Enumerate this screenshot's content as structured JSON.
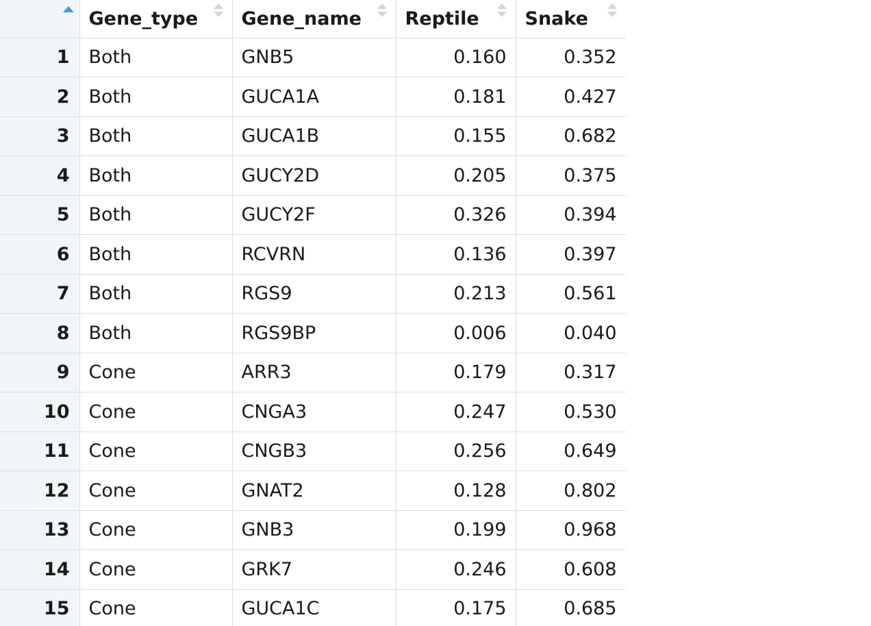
{
  "table": {
    "columns": [
      {
        "key": "index",
        "label": ""
      },
      {
        "key": "gene_type",
        "label": "Gene_type"
      },
      {
        "key": "gene_name",
        "label": "Gene_name"
      },
      {
        "key": "reptile",
        "label": "Reptile"
      },
      {
        "key": "snake",
        "label": "Snake"
      }
    ],
    "sort": {
      "column": "index",
      "direction": "ascending",
      "indicator_color": "#4d94e0"
    },
    "rows": [
      {
        "index": "1",
        "gene_type": "Both",
        "gene_name": "GNB5",
        "reptile": "0.160",
        "snake": "0.352"
      },
      {
        "index": "2",
        "gene_type": "Both",
        "gene_name": "GUCA1A",
        "reptile": "0.181",
        "snake": "0.427"
      },
      {
        "index": "3",
        "gene_type": "Both",
        "gene_name": "GUCA1B",
        "reptile": "0.155",
        "snake": "0.682"
      },
      {
        "index": "4",
        "gene_type": "Both",
        "gene_name": "GUCY2D",
        "reptile": "0.205",
        "snake": "0.375"
      },
      {
        "index": "5",
        "gene_type": "Both",
        "gene_name": "GUCY2F",
        "reptile": "0.326",
        "snake": "0.394"
      },
      {
        "index": "6",
        "gene_type": "Both",
        "gene_name": "RCVRN",
        "reptile": "0.136",
        "snake": "0.397"
      },
      {
        "index": "7",
        "gene_type": "Both",
        "gene_name": "RGS9",
        "reptile": "0.213",
        "snake": "0.561"
      },
      {
        "index": "8",
        "gene_type": "Both",
        "gene_name": "RGS9BP",
        "reptile": "0.006",
        "snake": "0.040"
      },
      {
        "index": "9",
        "gene_type": "Cone",
        "gene_name": "ARR3",
        "reptile": "0.179",
        "snake": "0.317"
      },
      {
        "index": "10",
        "gene_type": "Cone",
        "gene_name": "CNGA3",
        "reptile": "0.247",
        "snake": "0.530"
      },
      {
        "index": "11",
        "gene_type": "Cone",
        "gene_name": "CNGB3",
        "reptile": "0.256",
        "snake": "0.649"
      },
      {
        "index": "12",
        "gene_type": "Cone",
        "gene_name": "GNAT2",
        "reptile": "0.128",
        "snake": "0.802"
      },
      {
        "index": "13",
        "gene_type": "Cone",
        "gene_name": "GNB3",
        "reptile": "0.199",
        "snake": "0.968"
      },
      {
        "index": "14",
        "gene_type": "Cone",
        "gene_name": "GRK7",
        "reptile": "0.246",
        "snake": "0.608"
      },
      {
        "index": "15",
        "gene_type": "Cone",
        "gene_name": "GUCA1C",
        "reptile": "0.175",
        "snake": "0.685"
      }
    ]
  }
}
